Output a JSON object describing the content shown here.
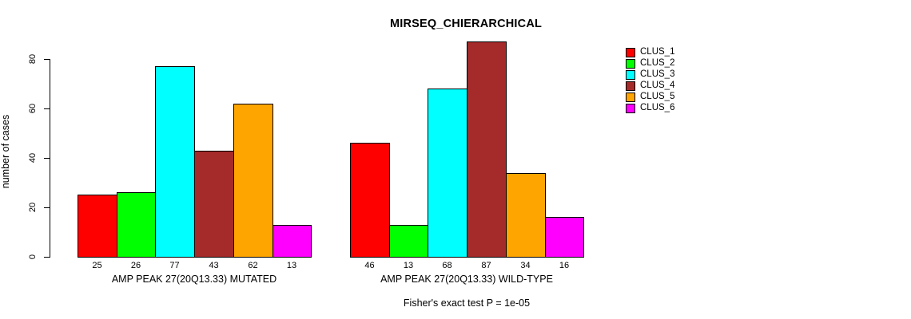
{
  "chart_data": {
    "type": "bar",
    "title": "MIRSEQ_CHIERARCHICAL",
    "ylabel": "number of cases",
    "xlabel": "",
    "ylim": [
      0,
      80
    ],
    "yticks": [
      0,
      20,
      40,
      60,
      80
    ],
    "grid": false,
    "legend_position": "right-outside",
    "series": [
      {
        "name": "CLUS_1",
        "color": "#FF0000"
      },
      {
        "name": "CLUS_2",
        "color": "#00FF00"
      },
      {
        "name": "CLUS_3",
        "color": "#00FFFF"
      },
      {
        "name": "CLUS_4",
        "color": "#A52A2A"
      },
      {
        "name": "CLUS_5",
        "color": "#FFA500"
      },
      {
        "name": "CLUS_6",
        "color": "#FF00FF"
      }
    ],
    "groups": [
      {
        "label": "AMP PEAK 27(20Q13.33) MUTATED",
        "values": [
          25,
          26,
          77,
          43,
          62,
          13
        ]
      },
      {
        "label": "AMP PEAK 27(20Q13.33) WILD-TYPE",
        "values": [
          46,
          13,
          68,
          87,
          34,
          16
        ]
      }
    ],
    "bar_value_labels_shown": true,
    "annotation": "Fisher's exact test P = 1e-05"
  }
}
